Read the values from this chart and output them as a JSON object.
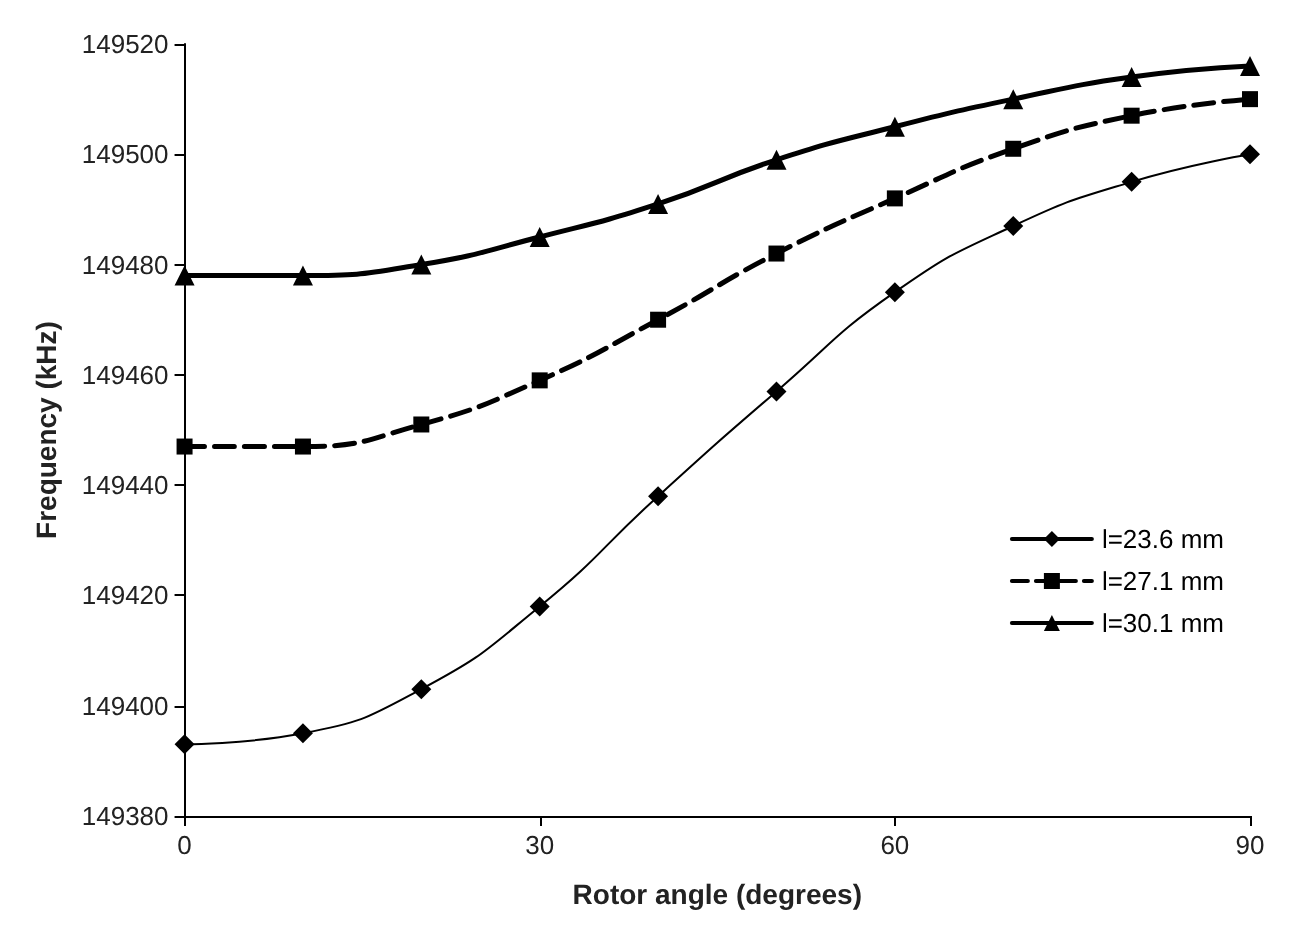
{
  "chart_data": {
    "type": "line",
    "xlabel": "Rotor angle (degrees)",
    "ylabel": "Frequency (kHz)",
    "x": [
      0,
      10,
      20,
      30,
      40,
      50,
      60,
      70,
      80,
      90
    ],
    "series": [
      {
        "name": "l=23.6 mm",
        "color": "#000000",
        "marker": "diamond",
        "line_style": "solid",
        "values": [
          149393,
          149395,
          149403,
          149418,
          149438,
          149457,
          149475,
          149487,
          149495,
          149500
        ]
      },
      {
        "name": "l=27.1 mm",
        "color": "#000000",
        "marker": "square",
        "line_style": "dashed",
        "values": [
          149447,
          149447,
          149451,
          149459,
          149470,
          149482,
          149492,
          149501,
          149507,
          149510
        ]
      },
      {
        "name": "l=30.1 mm",
        "color": "#000000",
        "marker": "triangle",
        "line_style": "solid",
        "values": [
          149478,
          149478,
          149480,
          149485,
          149491,
          149499,
          149505,
          149510,
          149514,
          149516
        ]
      }
    ],
    "xlim": [
      0,
      90
    ],
    "xticks": [
      0,
      30,
      60,
      90
    ],
    "ylim": [
      149380,
      149520
    ],
    "yticks": [
      149380,
      149400,
      149420,
      149440,
      149460,
      149480,
      149500,
      149520
    ],
    "grid": false,
    "legend": "right"
  }
}
